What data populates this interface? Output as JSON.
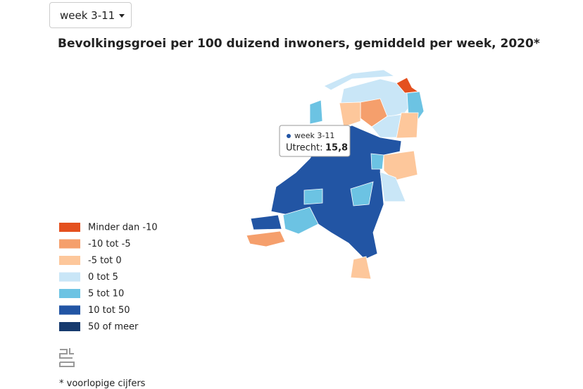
{
  "dropdown": {
    "label": "week 3-11"
  },
  "title": "Bevolkingsgroei per 100 duizend inwoners, gemiddeld per week, 2020*",
  "tooltip": {
    "series": "week 3-11",
    "region": "Utrecht:",
    "value": "15,8"
  },
  "legend": [
    {
      "label": "Minder dan -10",
      "color": "#e4501e"
    },
    {
      "label": "-10 tot -5",
      "color": "#f59f6c"
    },
    {
      "label": "-5 tot 0",
      "color": "#fdc79b"
    },
    {
      "label": "0 tot 5",
      "color": "#c9e6f7"
    },
    {
      "label": "5 tot 10",
      "color": "#6cc3e3"
    },
    {
      "label": "10 tot 50",
      "color": "#2255a4"
    },
    {
      "label": "50 of meer",
      "color": "#163a6e"
    }
  ],
  "footnote": "* voorlopige cijfers"
}
